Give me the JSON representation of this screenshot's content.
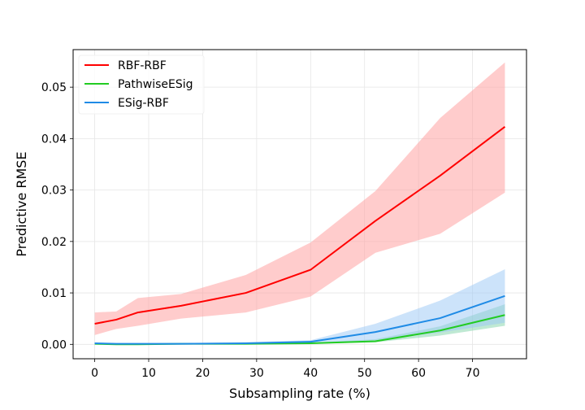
{
  "chart_data": {
    "type": "line",
    "title": "",
    "xlabel": "Subsampling rate (%)",
    "ylabel": "Predictive RMSE",
    "xlim": [
      -4,
      80
    ],
    "ylim": [
      -0.0028,
      0.0573
    ],
    "xticks": [
      0,
      10,
      20,
      30,
      40,
      50,
      60,
      70
    ],
    "yticks": [
      0.0,
      0.01,
      0.02,
      0.03,
      0.04,
      0.05
    ],
    "xtick_labels": [
      "0",
      "10",
      "20",
      "30",
      "40",
      "50",
      "60",
      "70"
    ],
    "ytick_labels": [
      "0.00",
      "0.01",
      "0.02",
      "0.03",
      "0.04",
      "0.05"
    ],
    "grid": true,
    "legend_position": "top-left",
    "series": [
      {
        "name": "RBF-RBF",
        "color": "#ff0000",
        "band_color": "#ff9999",
        "x": [
          0,
          4,
          8,
          16,
          28,
          40,
          52,
          64,
          76
        ],
        "y": [
          0.004,
          0.0048,
          0.0062,
          0.0075,
          0.01,
          0.0145,
          0.024,
          0.0328,
          0.0423
        ],
        "lower": [
          0.0018,
          0.003,
          0.0036,
          0.005,
          0.0062,
          0.0093,
          0.0178,
          0.0215,
          0.0295
        ],
        "upper": [
          0.0062,
          0.0064,
          0.009,
          0.0098,
          0.0135,
          0.0198,
          0.0298,
          0.044,
          0.0548
        ]
      },
      {
        "name": "PathwiseESig",
        "color": "#22cc22",
        "band_color": "#7fd4a8",
        "x": [
          0,
          4,
          8,
          16,
          28,
          40,
          52,
          64,
          76
        ],
        "y": [
          0.0001,
          0.0,
          0.0,
          0.0001,
          0.0001,
          0.0002,
          0.0006,
          0.0027,
          0.0057
        ],
        "lower": [
          0.0,
          0.0,
          0.0,
          0.0,
          0.0,
          0.0001,
          0.0004,
          0.0017,
          0.0036
        ],
        "upper": [
          0.0002,
          0.0001,
          0.0001,
          0.0002,
          0.0002,
          0.0003,
          0.001,
          0.0035,
          0.0078
        ]
      },
      {
        "name": "ESig-RBF",
        "color": "#1f8be6",
        "band_color": "#99c7f5",
        "x": [
          0,
          4,
          8,
          16,
          28,
          40,
          52,
          64,
          76
        ],
        "y": [
          0.0002,
          0.0001,
          0.0001,
          0.0001,
          0.0002,
          0.0005,
          0.0024,
          0.0051,
          0.0094
        ],
        "lower": [
          0.0001,
          0.0,
          0.0,
          0.0,
          0.0001,
          0.0003,
          0.0008,
          0.0023,
          0.0042
        ],
        "upper": [
          0.0003,
          0.0002,
          0.0002,
          0.0002,
          0.0004,
          0.0008,
          0.004,
          0.0085,
          0.0146
        ]
      }
    ]
  }
}
